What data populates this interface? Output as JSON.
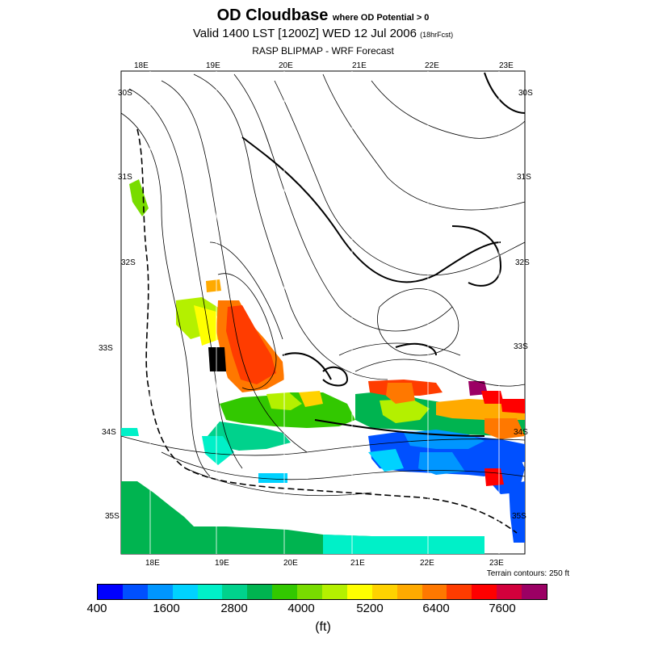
{
  "header": {
    "title_main": "OD Cloudbase",
    "title_sub": "where OD Potential > 0",
    "valid_line": "Valid 1400 LST [1200Z] WED 12 Jul 2006",
    "valid_note": "(18hrFcst)",
    "subtitle": "RASP BLIPMAP - WRF Forecast"
  },
  "map": {
    "top_lon_labels": [
      "18E",
      "19E",
      "20E",
      "21E",
      "22E",
      "23E"
    ],
    "bottom_lon_labels": [
      "18E",
      "19E",
      "20E",
      "21E",
      "22E",
      "23E"
    ],
    "left_lat_labels": [
      "30S",
      "31S",
      "32S",
      "33S",
      "34S",
      "35S"
    ],
    "right_lat_labels": [
      "30S",
      "31S",
      "32S",
      "33S",
      "34S",
      "35S"
    ],
    "terrain_note": "Terrain contours: 250 ft"
  },
  "colorbar": {
    "colors": [
      "#0000ff",
      "#0050ff",
      "#0096ff",
      "#00d2ff",
      "#00f0c8",
      "#00d28c",
      "#00b450",
      "#32c800",
      "#78dc00",
      "#b4f000",
      "#ffff00",
      "#ffd200",
      "#ffaa00",
      "#ff7800",
      "#ff3c00",
      "#ff0000",
      "#d2003c",
      "#9b0064"
    ],
    "labels": [
      "400",
      "1600",
      "2800",
      "4000",
      "5200",
      "6400",
      "7600"
    ],
    "unit": "(ft)"
  }
}
